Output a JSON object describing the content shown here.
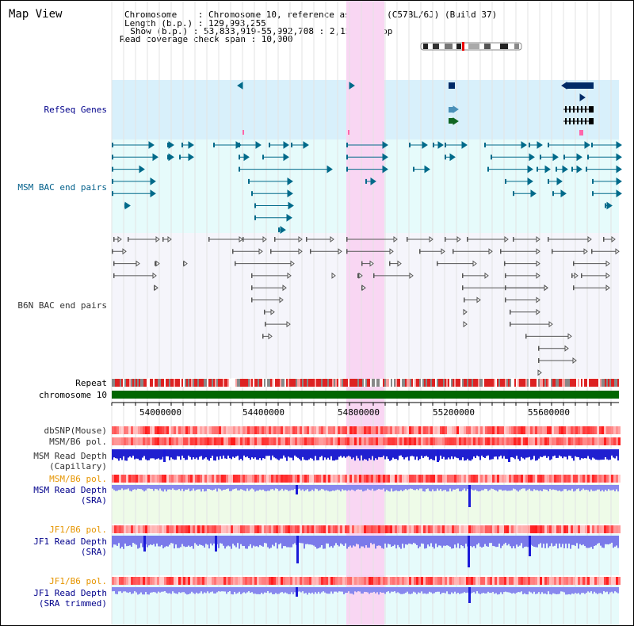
{
  "title": "Map View",
  "info": {
    "chromosome_line": "Chromosome    : Chromosome 10, reference assembly (C57BL/6J) (Build 37)",
    "length_line": "Length (b.p.) : 129,993,255",
    "show_line": "  Show (b.p.) : 53,833,919-55,992,708 : 2,158,790 bp",
    "coverage_line": "Read coverage check span : 10,000"
  },
  "tracks": {
    "refseq": "RefSeq Genes",
    "msm_bac": "MSM BAC end pairs",
    "b6n_bac": "B6N BAC end pairs",
    "repeat": "Repeat",
    "chromosome": "chromosome 10",
    "dbsnp": "dbSNP(Mouse)",
    "msm_b6_pol": "MSM/B6 pol.",
    "msm_read_depth_cap_1": "MSM Read Depth",
    "msm_read_depth_cap_2": "(Capillary)",
    "msm_b6_pol_2": "MSM/B6 pol.",
    "msm_read_depth_sra_1": "MSM Read Depth",
    "msm_read_depth_sra_2": "(SRA)",
    "jf1_b6_pol": "JF1/B6 pol.",
    "jf1_read_depth_sra_1": "JF1 Read Depth",
    "jf1_read_depth_sra_2": "(SRA)",
    "jf1_b6_pol_2": "JF1/B6 pol.",
    "jf1_read_depth_trim_1": "JF1 Read Depth",
    "jf1_read_depth_trim_2": "(SRA trimmed)"
  },
  "axis_ticks": [
    "54000000",
    "54400000",
    "54800000",
    "55200000",
    "55600000"
  ],
  "colors": {
    "highlight": "#f9d6f3",
    "refseq_bg": "#d6f0fb",
    "msm_bg": "#e6fbfb",
    "b6n_bg": "#f6f6fb",
    "chromosome": "#006600",
    "depth_dark": "#1a1ad8",
    "depth_light": "#8080f0",
    "teal_gene": "#006a8a"
  }
}
